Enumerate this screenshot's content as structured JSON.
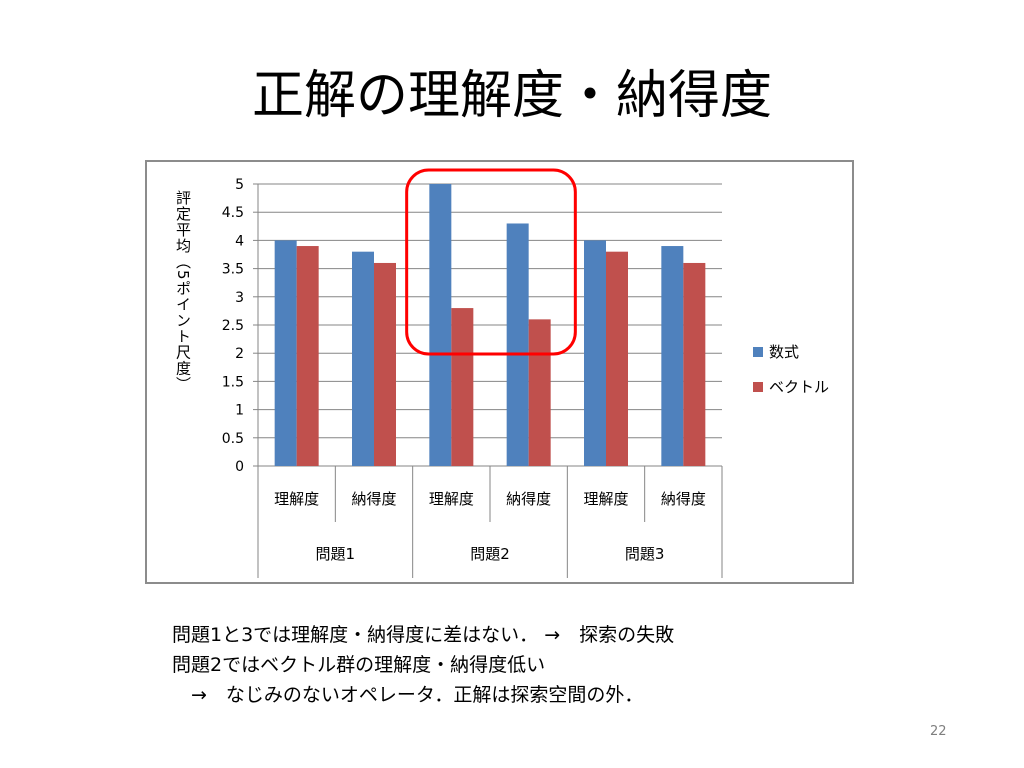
{
  "slide": {
    "title": "正解の理解度・納得度",
    "page_number": "22"
  },
  "notes": {
    "line1": "問題1と3では理解度・納得度に差はない． →　探索の失敗",
    "line2": "問題2ではベクトル群の理解度・納得度低い",
    "line3": "　→　なじみのないオペレータ．正解は探索空間の外．"
  },
  "chart_data": {
    "type": "bar",
    "ylabel": "評定平均（5ポイント尺度）",
    "ylim": [
      0,
      5
    ],
    "yticks": [
      "0",
      "0.5",
      "1",
      "1.5",
      "2",
      "2.5",
      "3",
      "3.5",
      "4",
      "4.5",
      "5"
    ],
    "grid": true,
    "legend_position": "right",
    "categories": [
      "理解度",
      "納得度",
      "理解度",
      "納得度",
      "理解度",
      "納得度"
    ],
    "groups": [
      "問題1",
      "問題2",
      "問題3"
    ],
    "series": [
      {
        "name": "数式",
        "color": "#4F81BD",
        "values": [
          4.0,
          3.8,
          5.0,
          4.3,
          4.0,
          3.9
        ]
      },
      {
        "name": "ベクトル",
        "color": "#C0504D",
        "values": [
          3.9,
          3.6,
          2.8,
          2.6,
          3.8,
          3.6
        ]
      }
    ],
    "highlight": {
      "group": "問題2",
      "color": "#FF0000"
    }
  }
}
